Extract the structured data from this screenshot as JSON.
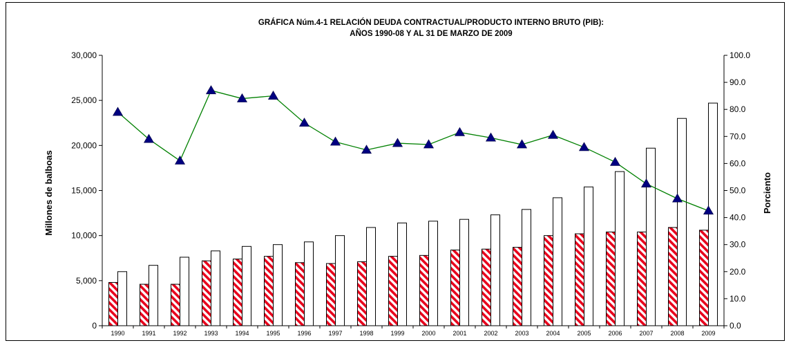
{
  "chart_data": {
    "type": "bar",
    "title": "GRÁFICA Núm.4-1  RELACIÓN DEUDA CONTRACTUAL/PRODUCTO INTERNO BRUTO (PIB):",
    "subtitle": "AÑOS 1990-08 Y AL 31 DE MARZO DE 2009",
    "ylabel": "Millones de balboas",
    "y2label": "Porciento",
    "ylim": [
      0,
      30000
    ],
    "y2lim": [
      0,
      100
    ],
    "yticks": [
      "0",
      "5,000",
      "10,000",
      "15,000",
      "20,000",
      "25,000",
      "30,000"
    ],
    "y2ticks": [
      "0.0",
      "10.0",
      "20.0",
      "30.0",
      "40.0",
      "50.0",
      "60.0",
      "70.0",
      "80.0",
      "90.0",
      "100.0"
    ],
    "categories": [
      "1990",
      "1991",
      "1992",
      "1993",
      "1994",
      "1995",
      "1996",
      "1997",
      "1998",
      "1999",
      "2000",
      "2001",
      "2002",
      "2003",
      "2004",
      "2005",
      "2006",
      "2007",
      "2008",
      "2009"
    ],
    "series": [
      {
        "values": [
          4800,
          4600,
          4600,
          7200,
          7400,
          7700,
          7000,
          6900,
          7100,
          7700,
          7800,
          8400,
          8500,
          8700,
          10000,
          10200,
          10400,
          10400,
          10900,
          10600
        ],
        "color": "#e8001c",
        "pattern": "diagonal-stripes",
        "axis": "left"
      },
      {
        "values": [
          6000,
          6700,
          7600,
          8300,
          8800,
          9000,
          9300,
          10000,
          10900,
          11400,
          11600,
          11800,
          12300,
          12900,
          14200,
          15400,
          17100,
          19700,
          23000,
          24700
        ],
        "color": "#ffffff",
        "axis": "left"
      },
      {
        "values": [
          79.0,
          69.0,
          61.0,
          87.0,
          84.0,
          85.0,
          75.0,
          68.0,
          65.0,
          67.5,
          67.0,
          71.5,
          69.5,
          67.0,
          70.5,
          66.0,
          60.5,
          52.5,
          47.0,
          42.5
        ],
        "color": "#008000",
        "marker": "triangle",
        "marker_color": "#000080",
        "axis": "right",
        "type": "line"
      }
    ]
  }
}
